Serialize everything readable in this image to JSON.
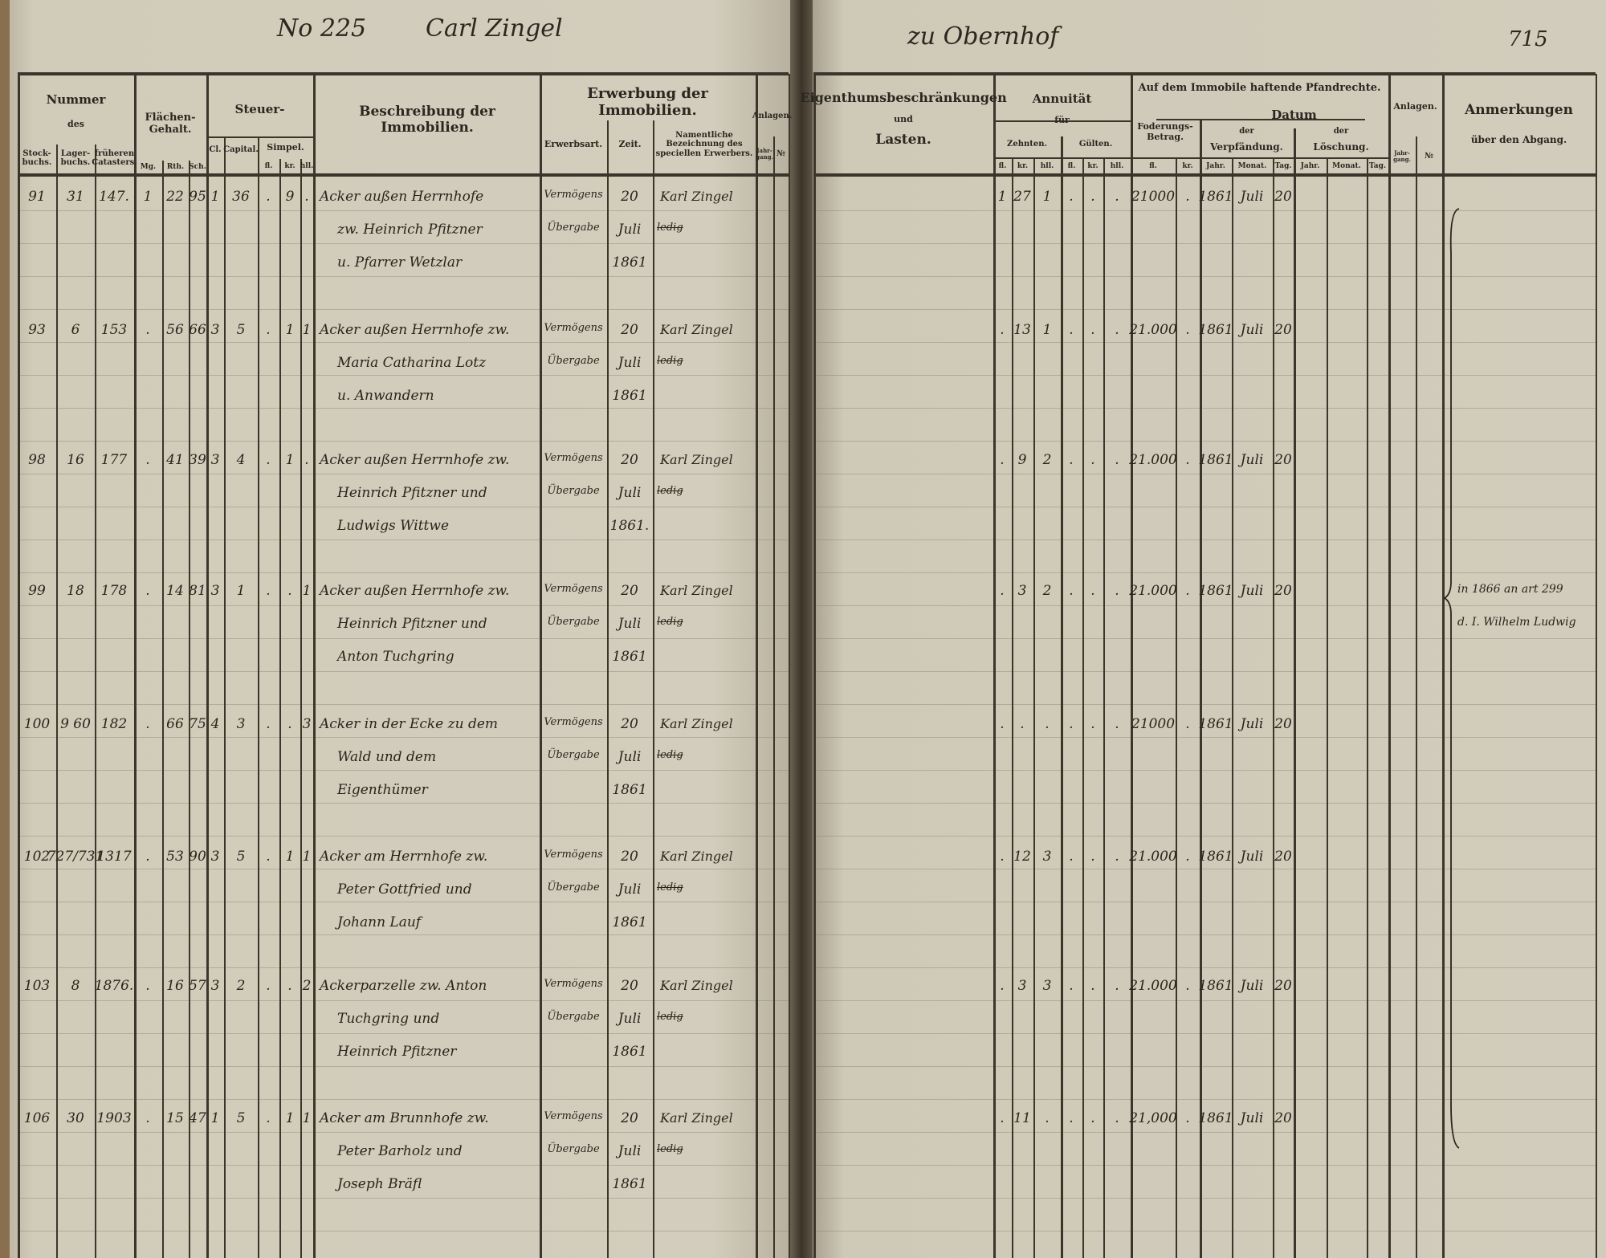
{
  "page_header": {
    "number_label": "No 225",
    "name": "Carl Zingel",
    "place": "zu Obernhof",
    "page_number": "715"
  },
  "left_headers": {
    "nummer": "Nummer",
    "des": "des",
    "stockbuchs": "Stock-buchs.",
    "lagerbuchs": "Lager-buchs.",
    "frueheren": "früheren Catasters.",
    "flaechen": "Flächen-Gehalt.",
    "mg": "Mg.",
    "rth": "Rth.",
    "sch": "Sch.",
    "steuer": "Steuer-",
    "cl": "Cl.",
    "capital": "Capital.",
    "simpel": "Simpel.",
    "fl": "fl.",
    "kr": "kr.",
    "hll": "hll.",
    "beschreibung": "Beschreibung der Immobilien.",
    "erwerbung": "Erwerbung der Immobilien.",
    "erwerbsart": "Erwerbsart.",
    "zeit": "Zeit.",
    "erwerber": "Namentliche Bezeichnung des speciellen Erwerbers.",
    "anlagen": "Anlagen.",
    "jahrgang": "Jahr-gang.",
    "no": "№"
  },
  "right_headers": {
    "eigenthum": "Eigenthumsbeschränkungen",
    "und": "und",
    "lasten": "Lasten.",
    "annuitaet": "Annuität",
    "fuer": "für",
    "zehnten": "Zehnten.",
    "gueltne": "Gülten.",
    "fl": "fl.",
    "kr": "kr.",
    "hll": "hll.",
    "pfandrechte": "Auf dem Immobile haftende Pfandrechte.",
    "foderung": "Foderungs-Betrag.",
    "datum": "Datum",
    "der": "der",
    "verpfaendung": "Verpfändung.",
    "loeschung": "Löschung.",
    "jahr": "Jahr.",
    "monat": "Monat.",
    "tag": "Tag.",
    "anlagen": "Anlagen.",
    "jahrgang": "Jahr-gang.",
    "no": "№",
    "anmerkungen": "Anmerkungen",
    "abgang": "über den Abgang."
  },
  "rows": [
    {
      "stock": "91",
      "lager": "31",
      "kataster": "147.",
      "mg": "1",
      "rth": "22",
      "sch": "95",
      "cl": "1",
      "capital": "36",
      "fl": ".",
      "kr": "9",
      "hll": ".",
      "desc": [
        "Acker außen Herrnhofe",
        "zw. Heinrich Pfitzner",
        "u. Pfarrer Wetzlar"
      ],
      "art": [
        "Vermögens",
        "Übergabe"
      ],
      "zeit": [
        "20",
        "Juli",
        "1861"
      ],
      "erwerber": [
        "Karl Zingel",
        "ledig"
      ],
      "z_fl": "1",
      "z_kr": "27",
      "z_hll": "1",
      "g_fl": ".",
      "g_kr": ".",
      "g_hll": ".",
      "betrag": "21000",
      "betrag_kr": ".",
      "jahr": "1861",
      "monat": "Juli",
      "tag": "20",
      "remark": []
    },
    {
      "stock": "93",
      "lager": "6",
      "kataster": "153",
      "mg": ".",
      "rth": "56",
      "sch": "66",
      "cl": "3",
      "capital": "5",
      "fl": ".",
      "kr": "1",
      "hll": "1",
      "desc": [
        "Acker außen Herrnhofe zw.",
        "Maria Catharina Lotz",
        "u. Anwandern"
      ],
      "art": [
        "Vermögens",
        "Übergabe"
      ],
      "zeit": [
        "20",
        "Juli",
        "1861"
      ],
      "erwerber": [
        "Karl Zingel",
        "ledig"
      ],
      "z_fl": ".",
      "z_kr": "13",
      "z_hll": "1",
      "g_fl": ".",
      "g_kr": ".",
      "g_hll": ".",
      "betrag": "21.000",
      "betrag_kr": ".",
      "jahr": "1861",
      "monat": "Juli",
      "tag": "20",
      "remark": []
    },
    {
      "stock": "98",
      "lager": "16",
      "kataster": "177",
      "mg": ".",
      "rth": "41",
      "sch": "39",
      "cl": "3",
      "capital": "4",
      "fl": ".",
      "kr": "1",
      "hll": ".",
      "desc": [
        "Acker außen Herrnhofe zw.",
        "Heinrich Pfitzner und",
        "Ludwigs Wittwe"
      ],
      "art": [
        "Vermögens",
        "Übergabe"
      ],
      "zeit": [
        "20",
        "Juli",
        "1861."
      ],
      "erwerber": [
        "Karl Zingel",
        "ledig"
      ],
      "z_fl": ".",
      "z_kr": "9",
      "z_hll": "2",
      "g_fl": ".",
      "g_kr": ".",
      "g_hll": ".",
      "betrag": "21.000",
      "betrag_kr": ".",
      "jahr": "1861",
      "monat": "Juli",
      "tag": "20",
      "remark": []
    },
    {
      "stock": "99",
      "lager": "18",
      "kataster": "178",
      "mg": ".",
      "rth": "14",
      "sch": "81",
      "cl": "3",
      "capital": "1",
      "fl": ".",
      "kr": ".",
      "hll": "1",
      "desc": [
        "Acker außen Herrnhofe zw.",
        "Heinrich Pfitzner und",
        "Anton Tuchgring"
      ],
      "art": [
        "Vermögens",
        "Übergabe"
      ],
      "zeit": [
        "20",
        "Juli",
        "1861"
      ],
      "erwerber": [
        "Karl Zingel",
        "ledig"
      ],
      "z_fl": ".",
      "z_kr": "3",
      "z_hll": "2",
      "g_fl": ".",
      "g_kr": ".",
      "g_hll": ".",
      "betrag": "21.000",
      "betrag_kr": ".",
      "jahr": "1861",
      "monat": "Juli",
      "tag": "20",
      "remark": [
        "in 1866 an art 299",
        "d. I. Wilhelm Ludwig"
      ]
    },
    {
      "stock": "100",
      "lager": "9 60",
      "kataster": "182",
      "mg": ".",
      "rth": "66",
      "sch": "75",
      "cl": "4",
      "capital": "3",
      "fl": ".",
      "kr": ".",
      "hll": "3",
      "desc": [
        "Acker in der Ecke zu dem",
        "Wald und dem",
        "Eigenthümer"
      ],
      "art": [
        "Vermögens",
        "Übergabe"
      ],
      "zeit": [
        "20",
        "Juli",
        "1861"
      ],
      "erwerber": [
        "Karl Zingel",
        "ledig"
      ],
      "z_fl": ".",
      "z_kr": ".",
      "z_hll": ".",
      "g_fl": ".",
      "g_kr": ".",
      "g_hll": ".",
      "betrag": "21000",
      "betrag_kr": ".",
      "jahr": "1861",
      "monat": "Juli",
      "tag": "20",
      "remark": []
    },
    {
      "stock": "102",
      "lager": "727/731",
      "kataster": "1317",
      "mg": ".",
      "rth": "53",
      "sch": "90",
      "cl": "3",
      "capital": "5",
      "fl": ".",
      "kr": "1",
      "hll": "1",
      "desc": [
        "Acker am Herrnhofe zw.",
        "Peter Gottfried und",
        "Johann Lauf"
      ],
      "art": [
        "Vermögens",
        "Übergabe"
      ],
      "zeit": [
        "20",
        "Juli",
        "1861"
      ],
      "erwerber": [
        "Karl Zingel",
        "ledig"
      ],
      "z_fl": ".",
      "z_kr": "12",
      "z_hll": "3",
      "g_fl": ".",
      "g_kr": ".",
      "g_hll": ".",
      "betrag": "21.000",
      "betrag_kr": ".",
      "jahr": "1861",
      "monat": "Juli",
      "tag": "20",
      "remark": []
    },
    {
      "stock": "103",
      "lager": "8",
      "kataster": "1876.",
      "mg": ".",
      "rth": "16",
      "sch": "57",
      "cl": "3",
      "capital": "2",
      "fl": ".",
      "kr": ".",
      "hll": "2",
      "desc": [
        "Ackerparzelle zw. Anton",
        "Tuchgring und",
        "Heinrich Pfitzner"
      ],
      "art": [
        "Vermögens",
        "Übergabe"
      ],
      "zeit": [
        "20",
        "Juli",
        "1861"
      ],
      "erwerber": [
        "Karl Zingel",
        "ledig"
      ],
      "z_fl": ".",
      "z_kr": "3",
      "z_hll": "3",
      "g_fl": ".",
      "g_kr": ".",
      "g_hll": ".",
      "betrag": "21.000",
      "betrag_kr": ".",
      "jahr": "1861",
      "monat": "Juli",
      "tag": "20",
      "remark": []
    },
    {
      "stock": "106",
      "lager": "30",
      "kataster": "1903",
      "mg": ".",
      "rth": "15",
      "sch": "47",
      "cl": "1",
      "capital": "5",
      "fl": ".",
      "kr": "1",
      "hll": "1",
      "desc": [
        "Acker am Brunnhofe zw.",
        "Peter Barholz und",
        "Joseph Bräfl"
      ],
      "art": [
        "Vermögens",
        "Übergabe"
      ],
      "zeit": [
        "20",
        "Juli",
        "1861"
      ],
      "erwerber": [
        "Karl Zingel",
        "ledig"
      ],
      "z_fl": ".",
      "z_kr": "11",
      "z_hll": ".",
      "g_fl": ".",
      "g_kr": ".",
      "g_hll": ".",
      "betrag": "21,000",
      "betrag_kr": ".",
      "jahr": "1861",
      "monat": "Juli",
      "tag": "20",
      "remark": []
    }
  ],
  "colors": {
    "paper": "#d2ccbc",
    "ink": "#2a241c",
    "rule": "#3b352c",
    "gutter": "#3c342a"
  }
}
